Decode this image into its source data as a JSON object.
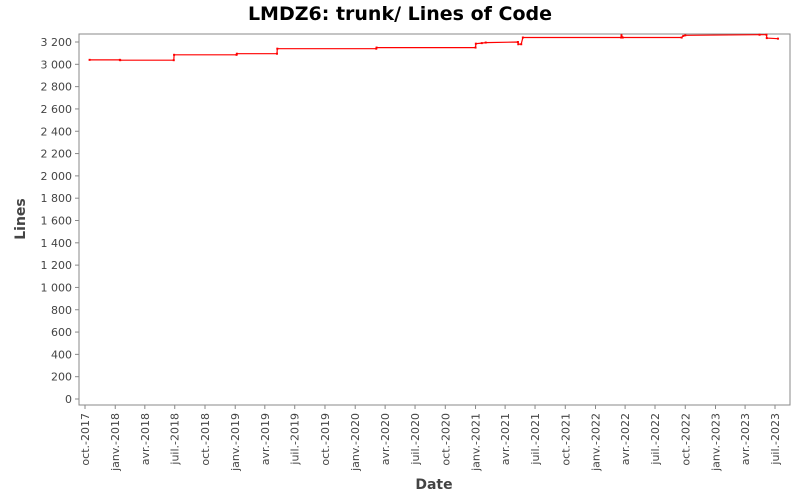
{
  "chart_data": {
    "type": "line",
    "title": "LMDZ6: trunk/ Lines of Code",
    "xlabel": "Date",
    "ylabel": "Lines",
    "ylim": [
      0,
      3300
    ],
    "xlim": [
      "2017-09-20",
      "2023-07-31"
    ],
    "grid": false,
    "legend": "none",
    "colors": {
      "line": "#ff0000",
      "background": "#ffffff",
      "axis": "#888888",
      "text": "#444444"
    },
    "y_ticks": [
      "0",
      "200",
      "400",
      "600",
      "800",
      "1 000",
      "1 200",
      "1 400",
      "1 600",
      "1 800",
      "2 000",
      "2 200",
      "2 400",
      "2 600",
      "2 800",
      "3 000",
      "3 200"
    ],
    "y_tick_values": [
      0,
      200,
      400,
      600,
      800,
      1000,
      1200,
      1400,
      1600,
      1800,
      2000,
      2200,
      2400,
      2600,
      2800,
      3000,
      3200
    ],
    "x_ticks": [
      {
        "label": "oct.-2017",
        "date": "2017-10-01"
      },
      {
        "label": "janv.-2018",
        "date": "2018-01-01"
      },
      {
        "label": "avr.-2018",
        "date": "2018-04-01"
      },
      {
        "label": "juil.-2018",
        "date": "2018-07-01"
      },
      {
        "label": "oct.-2018",
        "date": "2018-10-01"
      },
      {
        "label": "janv.-2019",
        "date": "2019-01-01"
      },
      {
        "label": "avr.-2019",
        "date": "2019-04-01"
      },
      {
        "label": "juil.-2019",
        "date": "2019-07-01"
      },
      {
        "label": "oct.-2019",
        "date": "2019-10-01"
      },
      {
        "label": "janv.-2020",
        "date": "2020-01-01"
      },
      {
        "label": "avr.-2020",
        "date": "2020-04-01"
      },
      {
        "label": "juil.-2020",
        "date": "2020-07-01"
      },
      {
        "label": "oct.-2020",
        "date": "2020-10-01"
      },
      {
        "label": "janv.-2021",
        "date": "2021-01-01"
      },
      {
        "label": "avr.-2021",
        "date": "2021-04-01"
      },
      {
        "label": "juil.-2021",
        "date": "2021-07-01"
      },
      {
        "label": "oct.-2021",
        "date": "2021-10-01"
      },
      {
        "label": "janv.-2022",
        "date": "2022-01-01"
      },
      {
        "label": "avr.-2022",
        "date": "2022-04-01"
      },
      {
        "label": "juil.-2022",
        "date": "2022-07-01"
      },
      {
        "label": "oct.-2022",
        "date": "2022-10-01"
      },
      {
        "label": "janv.-2023",
        "date": "2023-01-01"
      },
      {
        "label": "avr.-2023",
        "date": "2023-04-01"
      },
      {
        "label": "juil.-2023",
        "date": "2023-07-01"
      }
    ],
    "series": [
      {
        "points": [
          [
            "2017-10-15",
            3040
          ],
          [
            "2018-01-15",
            3040
          ],
          [
            "2018-01-16",
            3037
          ],
          [
            "2018-06-28",
            3037
          ],
          [
            "2018-06-29",
            3085
          ],
          [
            "2019-01-05",
            3085
          ],
          [
            "2019-01-06",
            3095
          ],
          [
            "2019-05-08",
            3095
          ],
          [
            "2019-05-09",
            3140
          ],
          [
            "2020-03-05",
            3140
          ],
          [
            "2020-03-06",
            3150
          ],
          [
            "2021-01-01",
            3150
          ],
          [
            "2021-01-02",
            3185
          ],
          [
            "2021-01-20",
            3190
          ],
          [
            "2021-02-01",
            3195
          ],
          [
            "2021-05-10",
            3200
          ],
          [
            "2021-05-11",
            3180
          ],
          [
            "2021-05-20",
            3180
          ],
          [
            "2021-05-25",
            3240
          ],
          [
            "2022-03-20",
            3240
          ],
          [
            "2022-03-21",
            3260
          ],
          [
            "2022-03-25",
            3240
          ],
          [
            "2022-09-20",
            3240
          ],
          [
            "2022-09-25",
            3255
          ],
          [
            "2022-10-01",
            3260
          ],
          [
            "2023-05-15",
            3265
          ],
          [
            "2023-06-05",
            3265
          ],
          [
            "2023-06-06",
            3235
          ],
          [
            "2023-07-10",
            3230
          ]
        ]
      }
    ]
  }
}
